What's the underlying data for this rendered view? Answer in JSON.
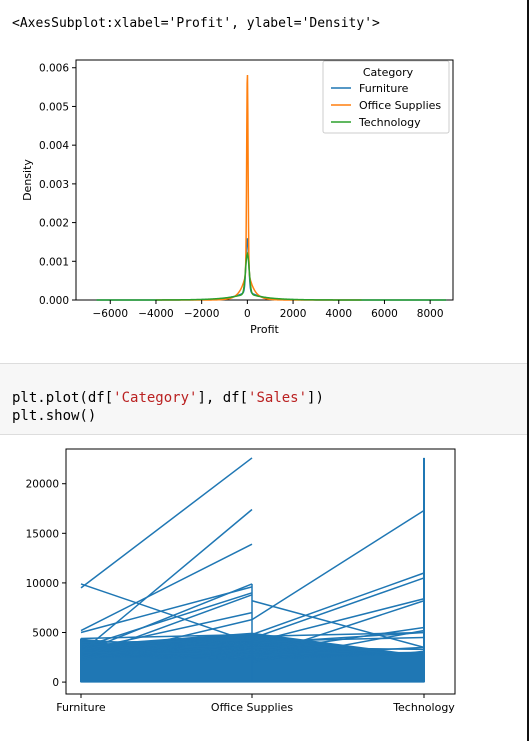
{
  "output_text": "<AxesSubplot:xlabel='Profit', ylabel='Density'>",
  "code": {
    "line1_prefix": "plt.plot(df[",
    "line1_str1": "'Category'",
    "line1_mid": "], df[",
    "line1_str2": "'Sales'",
    "line1_suffix": "])",
    "line2": "plt.show()"
  },
  "chart_data": [
    {
      "type": "line",
      "title": "",
      "xlabel": "Profit",
      "ylabel": "Density",
      "xlim": [
        -7500,
        9000
      ],
      "ylim": [
        0,
        0.0062
      ],
      "x_ticks": [
        -6000,
        -4000,
        -2000,
        0,
        2000,
        4000,
        6000,
        8000
      ],
      "x_tick_labels": [
        "−6000",
        "−4000",
        "−2000",
        "0",
        "2000",
        "4000",
        "6000",
        "8000"
      ],
      "y_ticks": [
        0,
        0.001,
        0.002,
        0.003,
        0.004,
        0.005,
        0.006
      ],
      "y_tick_labels": [
        "0.000",
        "0.001",
        "0.002",
        "0.003",
        "0.004",
        "0.005",
        "0.006"
      ],
      "legend": {
        "title": "Category",
        "placement": "top-right",
        "entries": [
          "Furniture",
          "Office Supplies",
          "Technology"
        ]
      },
      "series": [
        {
          "name": "Furniture",
          "color": "#1f77b4",
          "x_range": [
            -6600,
            8700
          ],
          "peak_x": 0,
          "peak_y": 0.0016,
          "width": 60,
          "tail_width": 600
        },
        {
          "name": "Office Supplies",
          "color": "#ff7f0e",
          "x_range": [
            -4000,
            5000
          ],
          "peak_x": 0,
          "peak_y": 0.0059,
          "width": 30,
          "tail_width": 250
        },
        {
          "name": "Technology",
          "color": "#2ca02c",
          "x_range": [
            -6600,
            8700
          ],
          "peak_x": 0,
          "peak_y": 0.0012,
          "width": 80,
          "tail_width": 800
        }
      ],
      "grid": false
    },
    {
      "type": "line",
      "title": "",
      "xlabel": "",
      "ylabel": "",
      "categories": [
        "Furniture",
        "Office Supplies",
        "Technology"
      ],
      "ylim": [
        -1200,
        23500
      ],
      "y_ticks": [
        0,
        5000,
        10000,
        15000,
        20000
      ],
      "y_tick_labels": [
        "0",
        "5000",
        "10000",
        "15000",
        "20000"
      ],
      "line_color": "#1f77b4",
      "line_segments": [
        [
          4300,
          3000
        ],
        [
          4200,
          2600
        ],
        [
          3800,
          3500
        ],
        [
          3500,
          3300
        ],
        [
          3000,
          2800
        ],
        [
          4100,
          4500
        ],
        [
          3000,
          9900
        ],
        [
          2500,
          8200
        ],
        [
          2200,
          6300
        ],
        [
          2000,
          5200
        ],
        [
          4400,
          4800
        ],
        [
          3900,
          5000
        ],
        [
          9900,
          4000
        ],
        [
          8200,
          3500
        ],
        [
          9500,
          22600
        ],
        [
          6300,
          17300
        ],
        [
          5200,
          13900
        ],
        [
          4800,
          11000
        ],
        [
          5000,
          9600
        ],
        [
          4000,
          8400
        ],
        [
          3500,
          9000
        ],
        [
          4600,
          5000
        ],
        [
          3200,
          7000
        ],
        [
          2800,
          3000
        ],
        [
          3000,
          17400
        ],
        [
          4400,
          10500
        ],
        [
          2500,
          8800
        ],
        [
          3000,
          5500
        ],
        [
          4000,
          4200
        ],
        [
          2600,
          3500
        ]
      ],
      "grid": false
    }
  ]
}
